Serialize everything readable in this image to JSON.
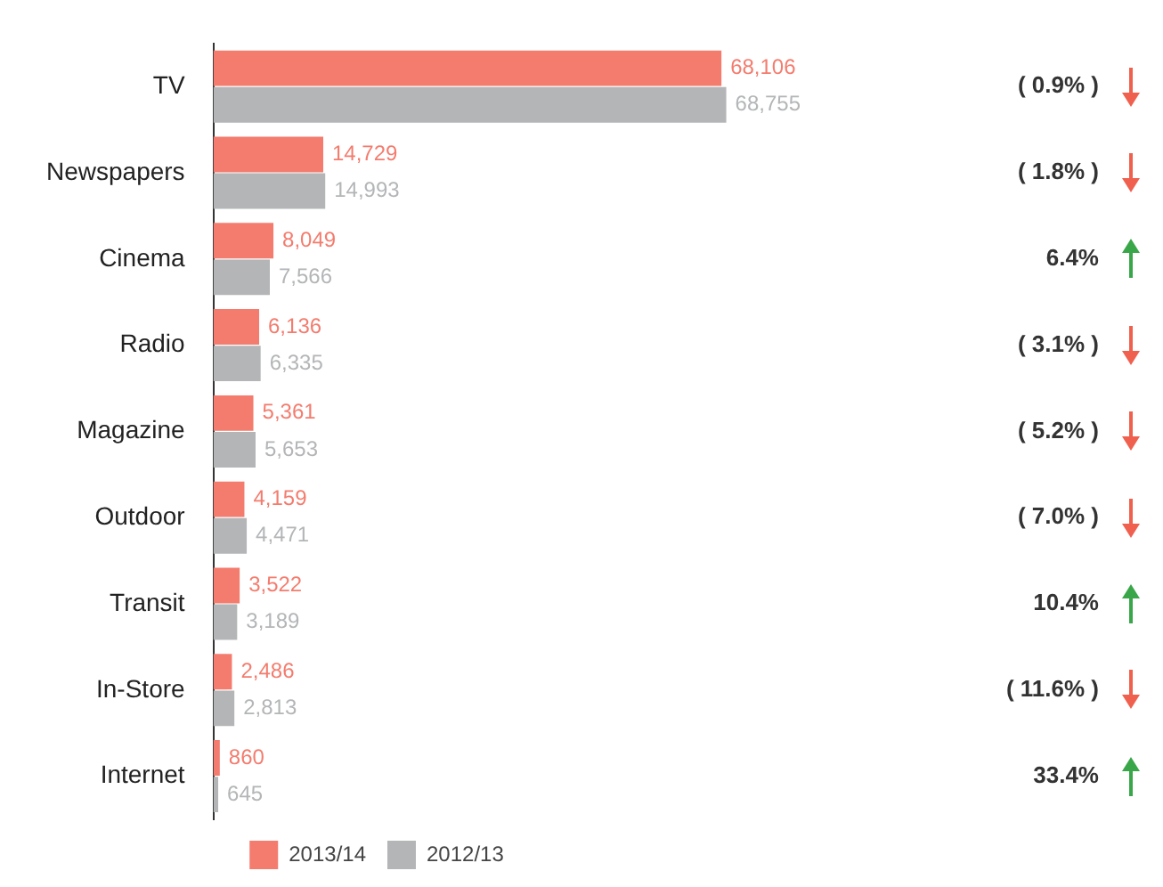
{
  "chart_data": {
    "type": "bar",
    "orientation": "horizontal",
    "categories": [
      "TV",
      "Newspapers",
      "Cinema",
      "Radio",
      "Magazine",
      "Outdoor",
      "Transit",
      "In-Store",
      "Internet"
    ],
    "series": [
      {
        "name": "2013/14",
        "color": "#f47c6e",
        "values": [
          68106,
          14729,
          8049,
          6136,
          5361,
          4159,
          3522,
          2486,
          860
        ],
        "value_labels": [
          "68,106",
          "14,729",
          "8,049",
          "6,136",
          "5,361",
          "4,159",
          "3,522",
          "2,486",
          "860"
        ]
      },
      {
        "name": "2012/13",
        "color": "#b3b5b7",
        "values": [
          68755,
          14993,
          7566,
          6335,
          5653,
          4471,
          3189,
          2813,
          645
        ],
        "value_labels": [
          "68,755",
          "14,993",
          "7,566",
          "6,335",
          "5,653",
          "4,471",
          "3,189",
          "2,813",
          "645"
        ]
      }
    ],
    "grid": false,
    "legend": "bottom",
    "tick_labels": "y",
    "annotations": [
      "( 0.9% )",
      "( 1.8% )",
      "6.4%",
      "( 3.1% )",
      "( 5.2% )",
      "( 7.0% )",
      "10.4%",
      "( 11.6% )",
      "33.4%"
    ]
  }
}
